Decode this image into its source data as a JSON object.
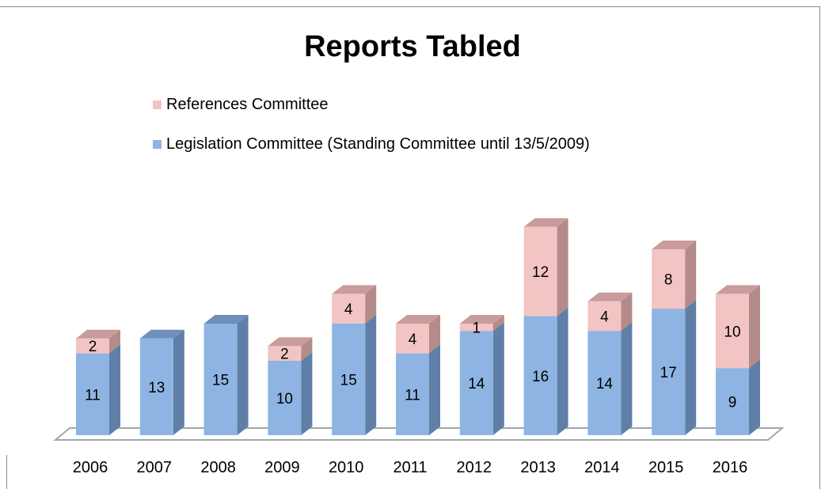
{
  "chart_data": {
    "type": "bar",
    "stacked": true,
    "three_d": true,
    "title": "Reports Tabled",
    "categories": [
      "2006",
      "2007",
      "2008",
      "2009",
      "2010",
      "2011",
      "2012",
      "2013",
      "2014",
      "2015",
      "2016"
    ],
    "series": [
      {
        "name": "Legislation Committee (Standing Committee until 13/5/2009)",
        "values": [
          11,
          13,
          15,
          10,
          15,
          11,
          14,
          16,
          14,
          17,
          9
        ],
        "color": "#8eb4e3",
        "side_color": "#5f7fa6",
        "top_color": "#6f8fb8"
      },
      {
        "name": "References Committee",
        "values": [
          2,
          0,
          0,
          2,
          4,
          4,
          1,
          12,
          4,
          8,
          10
        ],
        "color": "#f2c4c4",
        "side_color": "#b38b8b",
        "top_color": "#c99c9c"
      }
    ],
    "legend_position": "top-left",
    "grid": false,
    "ylim": [
      0,
      32
    ]
  }
}
